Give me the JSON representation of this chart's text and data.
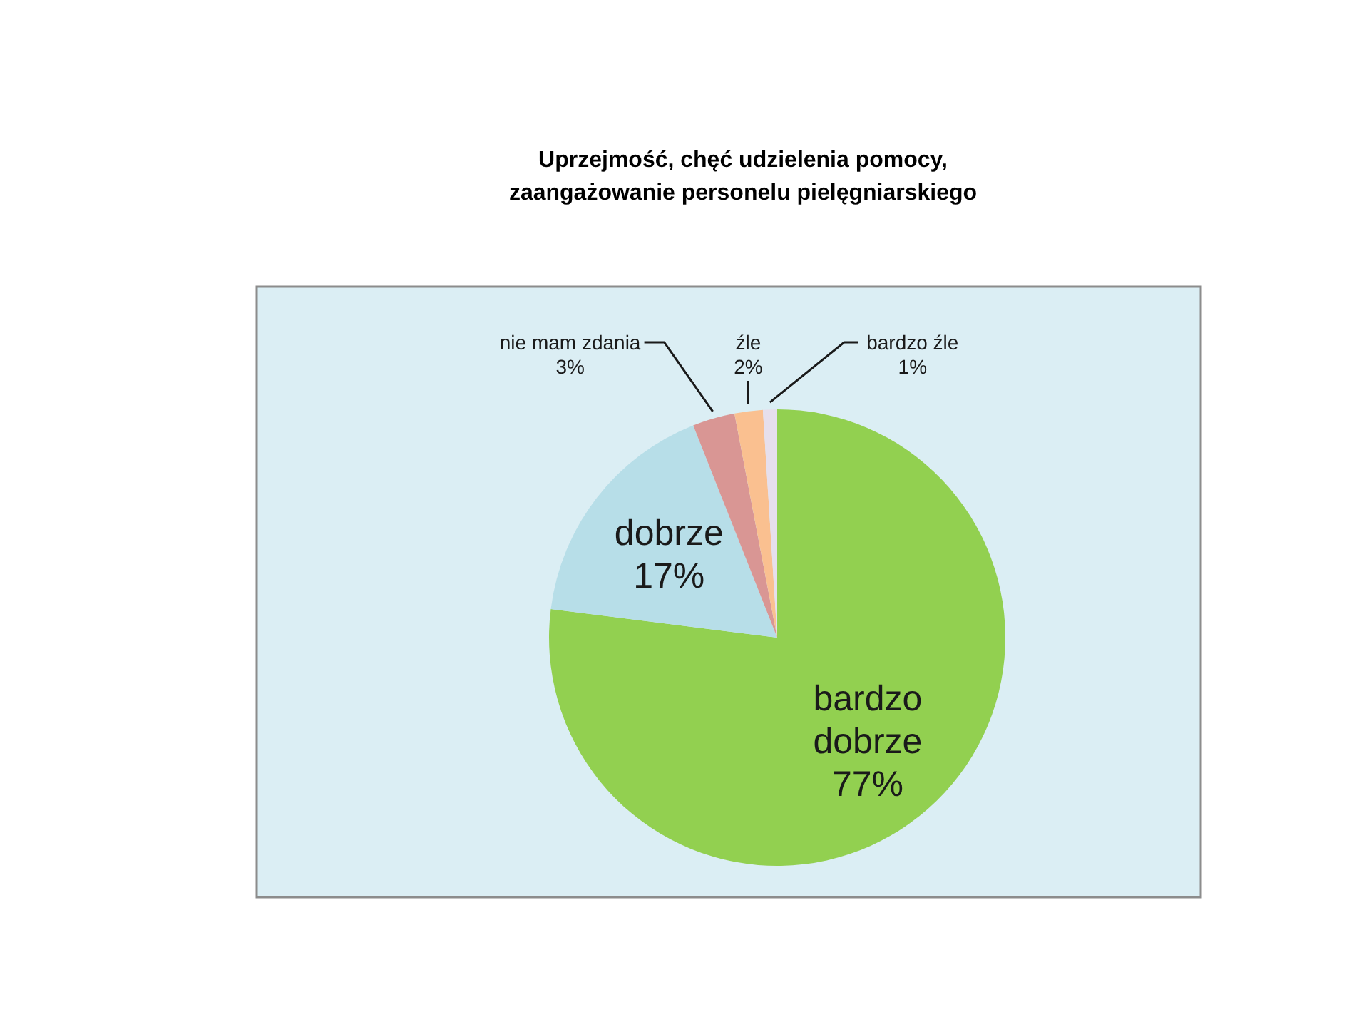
{
  "chart_data": {
    "type": "pie",
    "title": "Uprzejmość, chęć udzielenia pomocy,\nzaangażowanie personelu pielęgniarskiego",
    "categories": [
      "bardzo dobrze",
      "dobrze",
      "nie mam zdania",
      "źle",
      "bardzo źle"
    ],
    "values": [
      77,
      17,
      3,
      2,
      1
    ],
    "colors": [
      "#92d050",
      "#b7dee8",
      "#d99694",
      "#fac090",
      "#e6dfec"
    ],
    "value_labels": [
      "77%",
      "17%",
      "3%",
      "2%",
      "1%"
    ]
  }
}
